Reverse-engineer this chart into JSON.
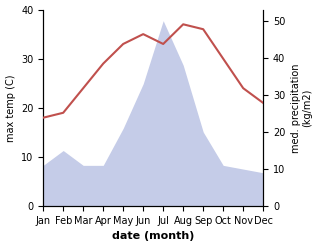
{
  "months": [
    "Jan",
    "Feb",
    "Mar",
    "Apr",
    "May",
    "Jun",
    "Jul",
    "Aug",
    "Sep",
    "Oct",
    "Nov",
    "Dec"
  ],
  "x": [
    1,
    2,
    3,
    4,
    5,
    6,
    7,
    8,
    9,
    10,
    11,
    12
  ],
  "temperature": [
    18,
    19,
    24,
    29,
    33,
    35,
    33,
    37,
    36,
    30,
    24,
    21
  ],
  "precipitation": [
    11,
    15,
    11,
    11,
    21,
    33,
    50,
    38,
    20,
    11,
    10,
    9
  ],
  "temp_color": "#c0504d",
  "precip_color_fill": "#c5cce8",
  "precip_color_edge": "#aab4d8",
  "ylabel_left": "max temp (C)",
  "ylabel_right": "med. precipitation\n(kg/m2)",
  "xlabel": "date (month)",
  "ylim_left": [
    0,
    40
  ],
  "ylim_right": [
    0,
    53
  ],
  "bg_color": "#ffffff"
}
